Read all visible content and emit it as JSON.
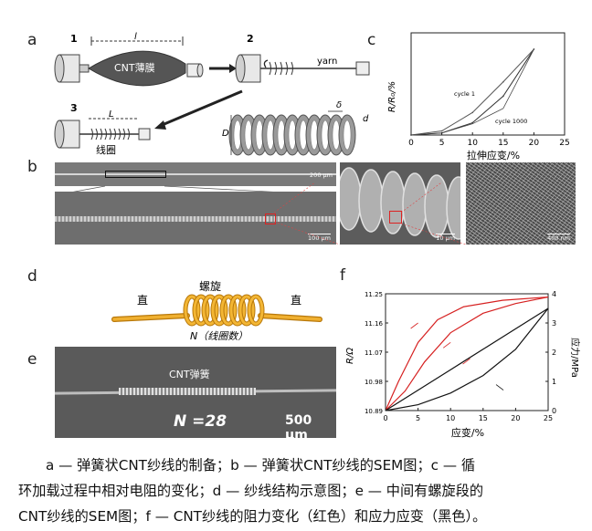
{
  "panels": {
    "a": {
      "letter": "a",
      "steps": [
        "1",
        "2",
        "3"
      ],
      "film_label": "CNT薄膜",
      "length_label_1": "l",
      "yarn_label": "yarn",
      "length_label_3": "L",
      "coil_label": "线圈",
      "delta_label": "δ",
      "D_label": "D",
      "d_label": "d"
    },
    "b": {
      "letter": "b",
      "scale_top": "200 μm",
      "scale_main": "100 μm",
      "scale_mid": "10 μm",
      "scale_right": "400 nm"
    },
    "c": {
      "letter": "c"
    },
    "d": {
      "letter": "d",
      "straight_left": "直",
      "helix": "螺旋",
      "straight_right": "直",
      "n_label": "N（线圈数）"
    },
    "e": {
      "letter": "e",
      "title": "CNT弹簧",
      "n_text": "N =28",
      "scale": "500 μm"
    },
    "f": {
      "letter": "f"
    }
  },
  "chart_data": [
    {
      "type": "line",
      "panel": "c",
      "xlabel": "拉伸应变/%",
      "ylabel": "R/R₀/%",
      "xlim": [
        0,
        25
      ],
      "ylim": [
        0,
        2.5
      ],
      "xticks": [
        0,
        5,
        10,
        15,
        20,
        25
      ],
      "yticks_labeled": false,
      "annotations": [
        "cycle 1",
        "cycle 1000"
      ],
      "series": [
        {
          "name": "cycle 1",
          "x": [
            0,
            5,
            10,
            15,
            20
          ],
          "y": [
            0,
            0.05,
            0.3,
            0.95,
            2.1
          ]
        },
        {
          "name": "cycle 1000",
          "x": [
            0,
            5,
            10,
            15,
            20
          ],
          "y": [
            0,
            0.1,
            0.55,
            1.3,
            2.1
          ]
        }
      ]
    },
    {
      "type": "line",
      "panel": "f",
      "xlabel": "应变/%",
      "ylabel_left": "R/Ω",
      "ylabel_right": "应力/MPa",
      "xlim": [
        0,
        25
      ],
      "ylim_left": [
        10.89,
        11.25
      ],
      "ylim_right": [
        0,
        4
      ],
      "xticks": [
        0,
        5,
        10,
        15,
        20,
        25
      ],
      "yticks_left": [
        10.89,
        10.98,
        11.07,
        11.16,
        11.25
      ],
      "yticks_right": [
        0,
        1,
        2,
        3,
        4
      ],
      "series": [
        {
          "name": "loading",
          "color": "#d62020",
          "x": [
            0,
            2,
            5,
            8,
            12,
            18,
            25
          ],
          "y": [
            10.89,
            10.98,
            11.1,
            11.17,
            11.21,
            11.23,
            11.24
          ]
        },
        {
          "name": "unloading",
          "color": "#d62020",
          "x": [
            0,
            3,
            6,
            10,
            15,
            20,
            25
          ],
          "y": [
            10.89,
            10.95,
            11.04,
            11.13,
            11.19,
            11.22,
            11.24
          ]
        },
        {
          "name": "stress-load",
          "color": "#111111",
          "axis": "right",
          "x": [
            0,
            5,
            10,
            15,
            20,
            25
          ],
          "y": [
            0,
            0.7,
            1.4,
            2.1,
            2.8,
            3.5
          ]
        },
        {
          "name": "stress-unload",
          "color": "#111111",
          "axis": "right",
          "x": [
            0,
            5,
            10,
            15,
            20,
            25
          ],
          "y": [
            0,
            0.2,
            0.6,
            1.2,
            2.1,
            3.5
          ]
        }
      ]
    }
  ],
  "caption": {
    "line1": "a — 弹簧状CNT纱线的制备；b — 弹簧状CNT纱线的SEM图；c — 循",
    "line2": "环加载过程中相对电阻的变化；d — 纱线结构示意图；e — 中间有螺旋段的",
    "line3": "CNT纱线的SEM图；f — CNT纱线的阻力变化（红色）和应力应变（黑色）。"
  }
}
